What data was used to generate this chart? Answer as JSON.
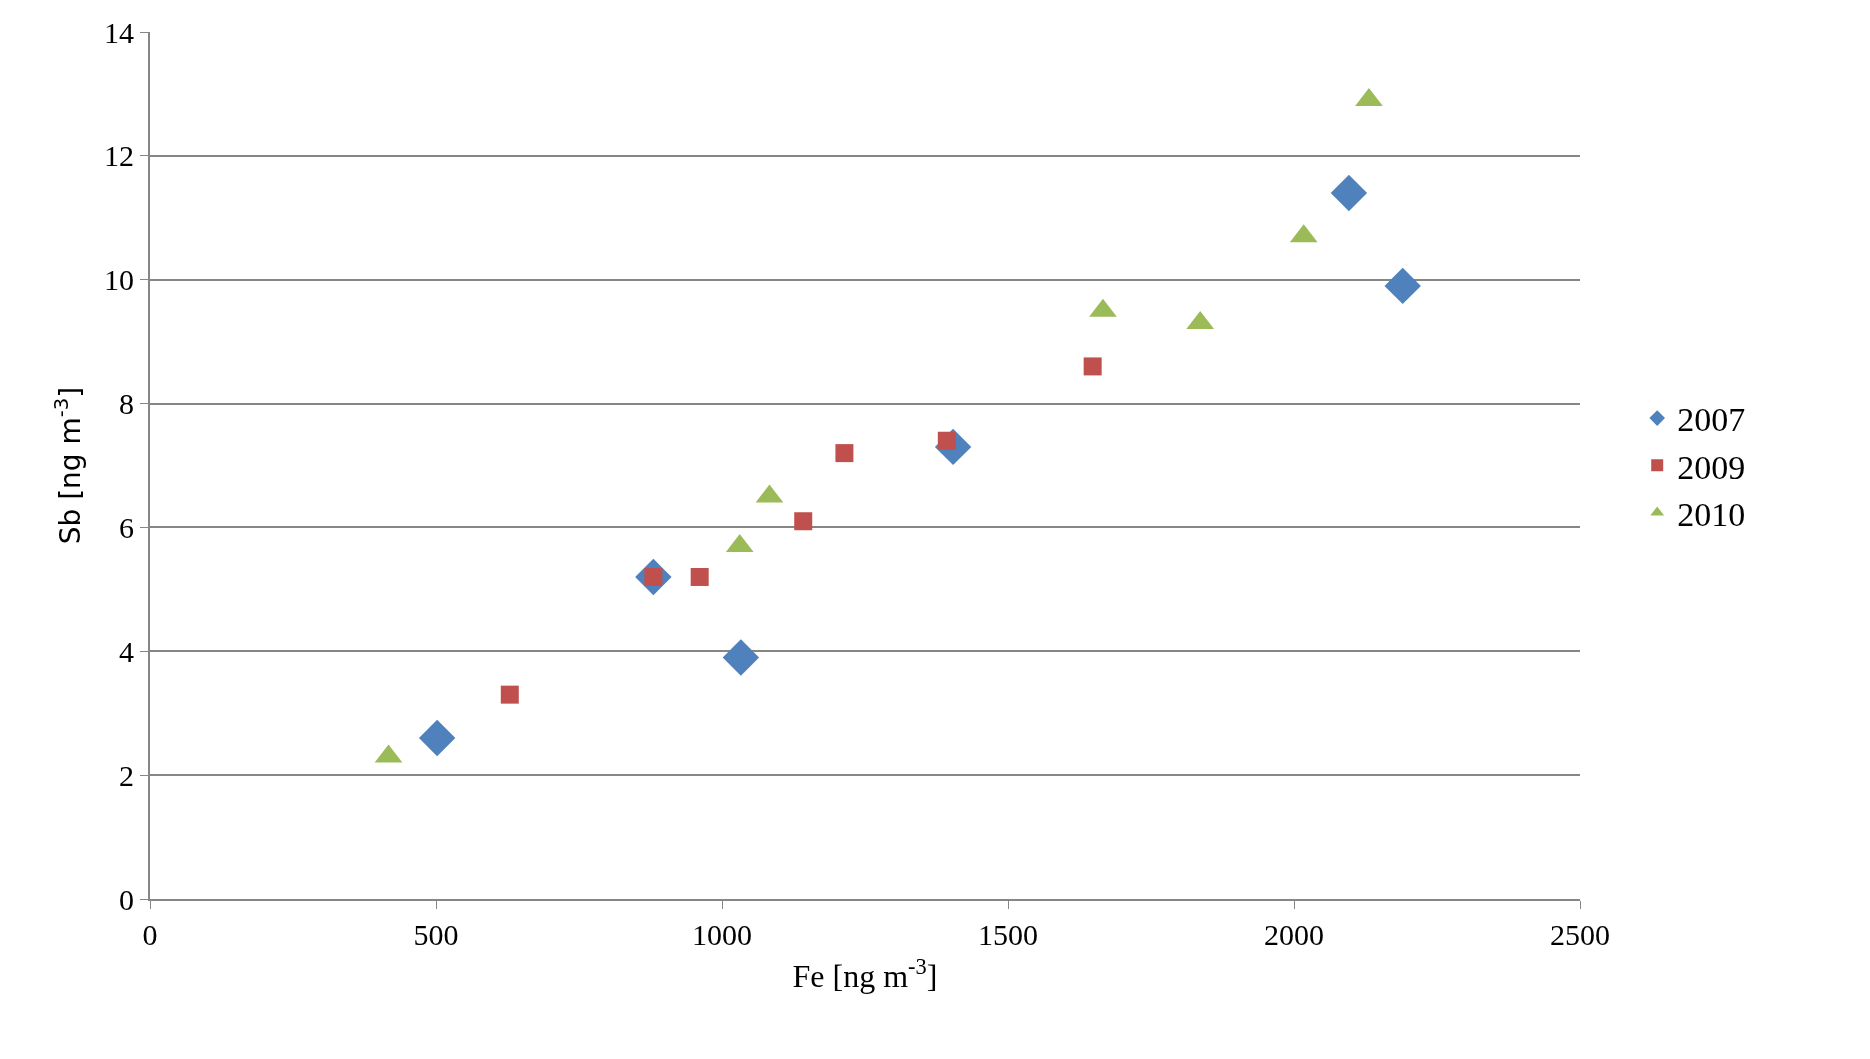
{
  "chart_data": {
    "type": "scatter",
    "xlabel": "Fe [ng m$^{-3}$]",
    "ylabel": "Sb [ng m$^{-3}$]",
    "xlim": [
      0,
      2500
    ],
    "xticks": [
      0,
      500,
      1000,
      1500,
      2000,
      2500
    ],
    "ylim": [
      0,
      14
    ],
    "yticks": [
      0,
      2,
      4,
      6,
      8,
      10,
      12,
      14
    ],
    "grid": "y",
    "legend": "right",
    "series": [
      {
        "name": "2007",
        "color": "#4f81bd",
        "marker": "diamond",
        "x": [
          502,
          1033,
          880,
          1404,
          2096,
          2190
        ],
        "values": [
          2.6,
          3.9,
          5.2,
          7.3,
          11.4,
          9.9
        ]
      },
      {
        "name": "2009",
        "color": "#c0504d",
        "marker": "square",
        "x": [
          629,
          880,
          961,
          1142,
          1214,
          1393,
          1648
        ],
        "values": [
          3.3,
          5.2,
          5.2,
          6.1,
          7.2,
          7.4,
          8.6
        ]
      },
      {
        "name": "2010",
        "color": "#9bbb59",
        "marker": "triangle",
        "x": [
          417,
          1031,
          1083,
          1666,
          1836,
          2017,
          2131
        ],
        "values": [
          2.3,
          5.7,
          6.5,
          9.5,
          9.3,
          10.7,
          12.9
        ]
      }
    ]
  }
}
